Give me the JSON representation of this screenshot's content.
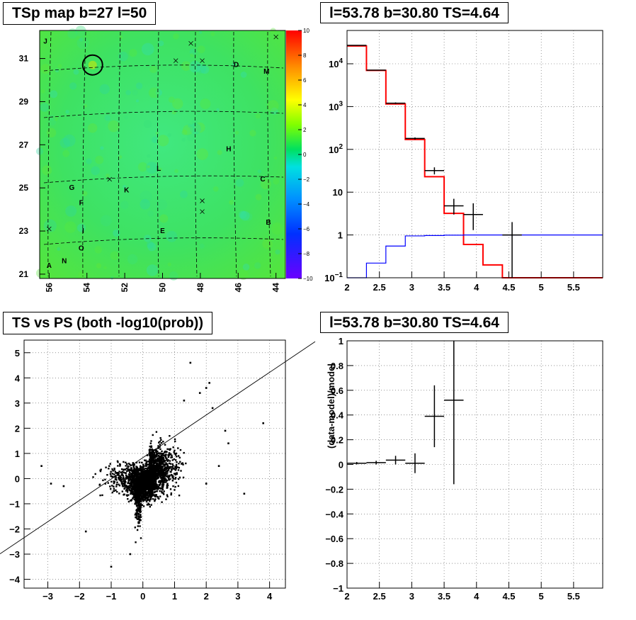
{
  "titles": {
    "map": "TSp map b=27 l=50",
    "spectrum": "l=53.78 b=30.80 TS=4.64",
    "scatter": "TS vs PS (both -log10(prob))",
    "residual": "l=53.78 b=30.80 TS=4.64"
  },
  "chart_data": [
    {
      "type": "heatmap",
      "title": "TSp map b=27 l=50",
      "xlim": [
        56.5,
        43.5
      ],
      "ylim": [
        20.8,
        32.3
      ],
      "x_ticks": [
        56,
        54,
        52,
        50,
        48,
        46,
        44
      ],
      "y_ticks": [
        21,
        23,
        25,
        27,
        29,
        31
      ],
      "colorbar": {
        "range": [
          -10,
          10
        ],
        "ticks": [
          10,
          8,
          6,
          4,
          2,
          0,
          -2,
          -4,
          -6,
          -8,
          -10
        ]
      },
      "letters": [
        {
          "t": "J",
          "x": 56.2,
          "y": 31.7
        },
        {
          "t": "D",
          "x": 46.1,
          "y": 30.6
        },
        {
          "t": "M",
          "x": 44.5,
          "y": 30.3
        },
        {
          "t": "H",
          "x": 46.5,
          "y": 26.7
        },
        {
          "t": "L",
          "x": 50.2,
          "y": 25.8
        },
        {
          "t": "C",
          "x": 44.7,
          "y": 25.3
        },
        {
          "t": "G",
          "x": 54.8,
          "y": 24.9
        },
        {
          "t": "K",
          "x": 51.9,
          "y": 24.8
        },
        {
          "t": "F",
          "x": 54.3,
          "y": 24.2
        },
        {
          "t": "B",
          "x": 44.4,
          "y": 23.3
        },
        {
          "t": "I",
          "x": 54.2,
          "y": 22.9
        },
        {
          "t": "E",
          "x": 50.0,
          "y": 22.9
        },
        {
          "t": "O",
          "x": 54.3,
          "y": 22.1
        },
        {
          "t": "N",
          "x": 55.2,
          "y": 21.5
        },
        {
          "t": "A",
          "x": 56.0,
          "y": 21.3
        }
      ],
      "crosses": [
        [
          44.0,
          32.0
        ],
        [
          48.5,
          31.7
        ],
        [
          47.9,
          30.9
        ],
        [
          49.3,
          30.9
        ],
        [
          52.8,
          25.4
        ],
        [
          47.9,
          24.4
        ],
        [
          47.9,
          23.9
        ],
        [
          56.0,
          23.1
        ]
      ],
      "circle": {
        "x": 53.7,
        "y": 30.7
      }
    },
    {
      "type": "line",
      "title": "l=53.78 b=30.80 TS=4.64",
      "xlim": [
        2,
        5.95
      ],
      "ylim": [
        0.1,
        60000
      ],
      "log_y": true,
      "x_ticks": [
        2,
        2.5,
        3,
        3.5,
        4,
        4.5,
        5,
        5.5
      ],
      "y_ticks": [
        {
          "v": 0.1,
          "l": "10^-1"
        },
        {
          "v": 1,
          "l": "1"
        },
        {
          "v": 10,
          "l": "10"
        },
        {
          "v": 100,
          "l": "10^2"
        },
        {
          "v": 1000,
          "l": "10^3"
        },
        {
          "v": 10000,
          "l": "10^4"
        }
      ],
      "series": [
        {
          "color": "#ff0000",
          "edges": [
            2.0,
            2.3,
            2.6,
            2.9,
            3.2,
            3.5,
            3.8,
            4.1,
            4.4,
            5.95
          ],
          "values": [
            26000,
            7000,
            1150,
            170,
            23,
            3.2,
            0.6,
            0.2,
            0.1
          ]
        },
        {
          "color": "#0000ff",
          "edges": [
            2.0,
            2.3,
            2.6,
            2.9,
            3.2,
            3.5,
            3.8,
            4.1,
            4.4,
            5.95
          ],
          "values": [
            0.1,
            0.22,
            0.55,
            0.95,
            0.97,
            0.99,
            1.0,
            1.0,
            1.0
          ]
        }
      ],
      "points": [
        {
          "x": 2.15,
          "y": 27000,
          "xe": 0.15,
          "ylo": 26500,
          "yhi": 27500
        },
        {
          "x": 2.45,
          "y": 7100,
          "xe": 0.15,
          "ylo": 7000,
          "yhi": 7200
        },
        {
          "x": 2.75,
          "y": 1200,
          "xe": 0.15,
          "ylo": 1150,
          "yhi": 1250
        },
        {
          "x": 3.05,
          "y": 180,
          "xe": 0.15,
          "ylo": 170,
          "yhi": 190
        },
        {
          "x": 3.35,
          "y": 32,
          "xe": 0.15,
          "ylo": 26,
          "yhi": 38
        },
        {
          "x": 3.65,
          "y": 4.8,
          "xe": 0.15,
          "ylo": 3.0,
          "yhi": 7.0
        },
        {
          "x": 3.95,
          "y": 3.0,
          "xe": 0.15,
          "ylo": 1.3,
          "yhi": 5.5
        },
        {
          "x": 4.55,
          "y": 1.0,
          "xe": 0.15,
          "ylo": 0.1,
          "yhi": 2.0
        }
      ]
    },
    {
      "type": "scatter",
      "title": "TS vs PS (both -log10(prob))",
      "xlim": [
        -3.75,
        4.5
      ],
      "ylim": [
        -4.35,
        5.5
      ],
      "x_ticks": [
        -3,
        -2,
        -1,
        0,
        1,
        2,
        3,
        4
      ],
      "y_ticks": [
        -4,
        -3,
        -2,
        -1,
        0,
        1,
        2,
        3,
        4,
        5
      ],
      "line": {
        "slope": 1,
        "intercept": 0
      },
      "outliers": [
        [
          -3.2,
          0.5
        ],
        [
          -2.5,
          -0.3
        ],
        [
          -1.8,
          -2.1
        ],
        [
          1.5,
          4.6
        ],
        [
          2.1,
          3.8
        ],
        [
          2.0,
          3.6
        ],
        [
          3.2,
          -0.6
        ],
        [
          3.8,
          2.2
        ],
        [
          2.2,
          2.8
        ],
        [
          2.7,
          1.4
        ],
        [
          -1.0,
          -3.5
        ],
        [
          1.8,
          3.4
        ],
        [
          2.6,
          1.9
        ],
        [
          -2.9,
          -0.2
        ],
        [
          2.4,
          0.5
        ],
        [
          1.3,
          3.1
        ],
        [
          -0.4,
          -3.0
        ],
        [
          2.0,
          -0.2
        ]
      ]
    },
    {
      "type": "line",
      "title": "l=53.78 b=30.80 TS=4.64",
      "ylabel": "(data-model)/model",
      "xlim": [
        2,
        5.95
      ],
      "ylim": [
        -1,
        1
      ],
      "x_ticks": [
        2,
        2.5,
        3,
        3.5,
        4,
        4.5,
        5,
        5.5
      ],
      "y_ticks": [
        1,
        0.8,
        0.6,
        0.4,
        0.2,
        0,
        -0.2,
        -0.4,
        -0.6,
        -0.8,
        -1
      ],
      "points": [
        {
          "x": 2.15,
          "y": 0.01,
          "xe": 0.15,
          "ylo": 0.0,
          "yhi": 0.02
        },
        {
          "x": 2.45,
          "y": 0.015,
          "xe": 0.15,
          "ylo": 0.0,
          "yhi": 0.03
        },
        {
          "x": 2.75,
          "y": 0.035,
          "xe": 0.15,
          "ylo": 0.0,
          "yhi": 0.07
        },
        {
          "x": 3.05,
          "y": 0.01,
          "xe": 0.15,
          "ylo": -0.07,
          "yhi": 0.09
        },
        {
          "x": 3.35,
          "y": 0.39,
          "xe": 0.15,
          "ylo": 0.14,
          "yhi": 0.64
        },
        {
          "x": 3.65,
          "y": 0.52,
          "xe": 0.15,
          "ylo": -0.16,
          "yhi": 1.0
        }
      ]
    }
  ]
}
